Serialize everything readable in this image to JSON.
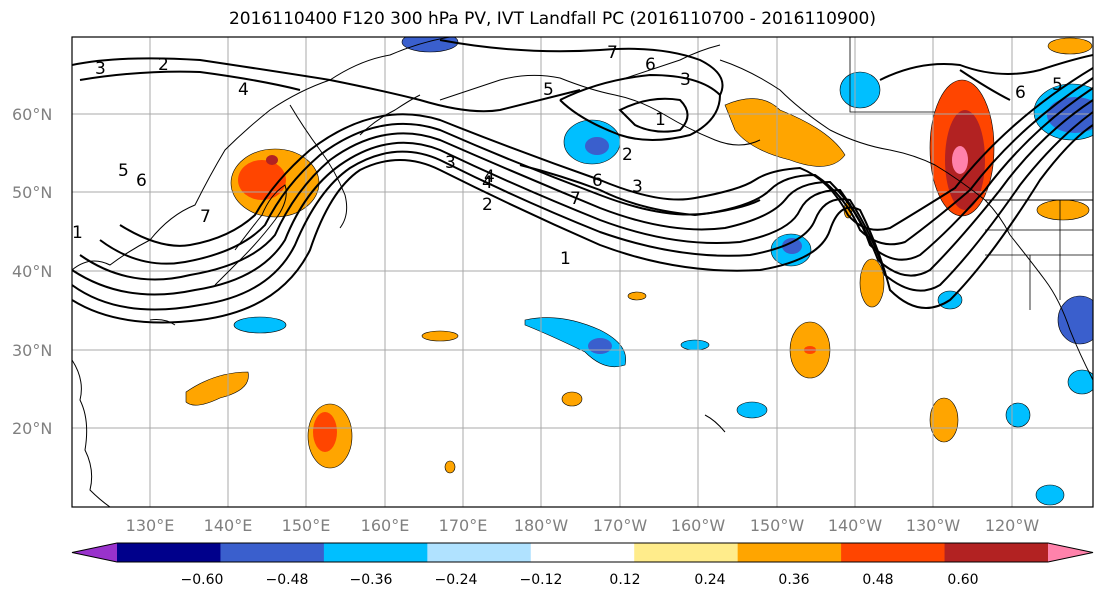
{
  "title": "2016110400 F120 300 hPa PV, IVT Landfall PC (2016110700 - 2016110900)",
  "lat_labels": [
    "60°N",
    "50°N",
    "40°N",
    "30°N",
    "20°N"
  ],
  "lon_labels": [
    "130°E",
    "140°E",
    "150°E",
    "160°E",
    "170°E",
    "180°W",
    "170°W",
    "160°W",
    "150°W",
    "140°W",
    "130°W",
    "120°W"
  ],
  "colorbar": {
    "ticks": [
      "−0.60",
      "−0.48",
      "−0.36",
      "−0.24",
      "−0.12",
      "0.12",
      "0.24",
      "0.36",
      "0.48",
      "0.60"
    ],
    "colors": [
      "#9932cc",
      "#00008b",
      "#3a5fcd",
      "#00bfff",
      "#b0e2ff",
      "#ffffff",
      "#ffec8b",
      "#ffa500",
      "#ff4500",
      "#b22222",
      "#ff82ab"
    ]
  },
  "contour_labels": [
    "3",
    "2",
    "4",
    "7",
    "6",
    "5",
    "3",
    "1",
    "2",
    "6",
    "3",
    "1",
    "4",
    "6",
    "5",
    "5",
    "6",
    "7",
    "3",
    "4",
    "2",
    "7",
    "1"
  ]
}
